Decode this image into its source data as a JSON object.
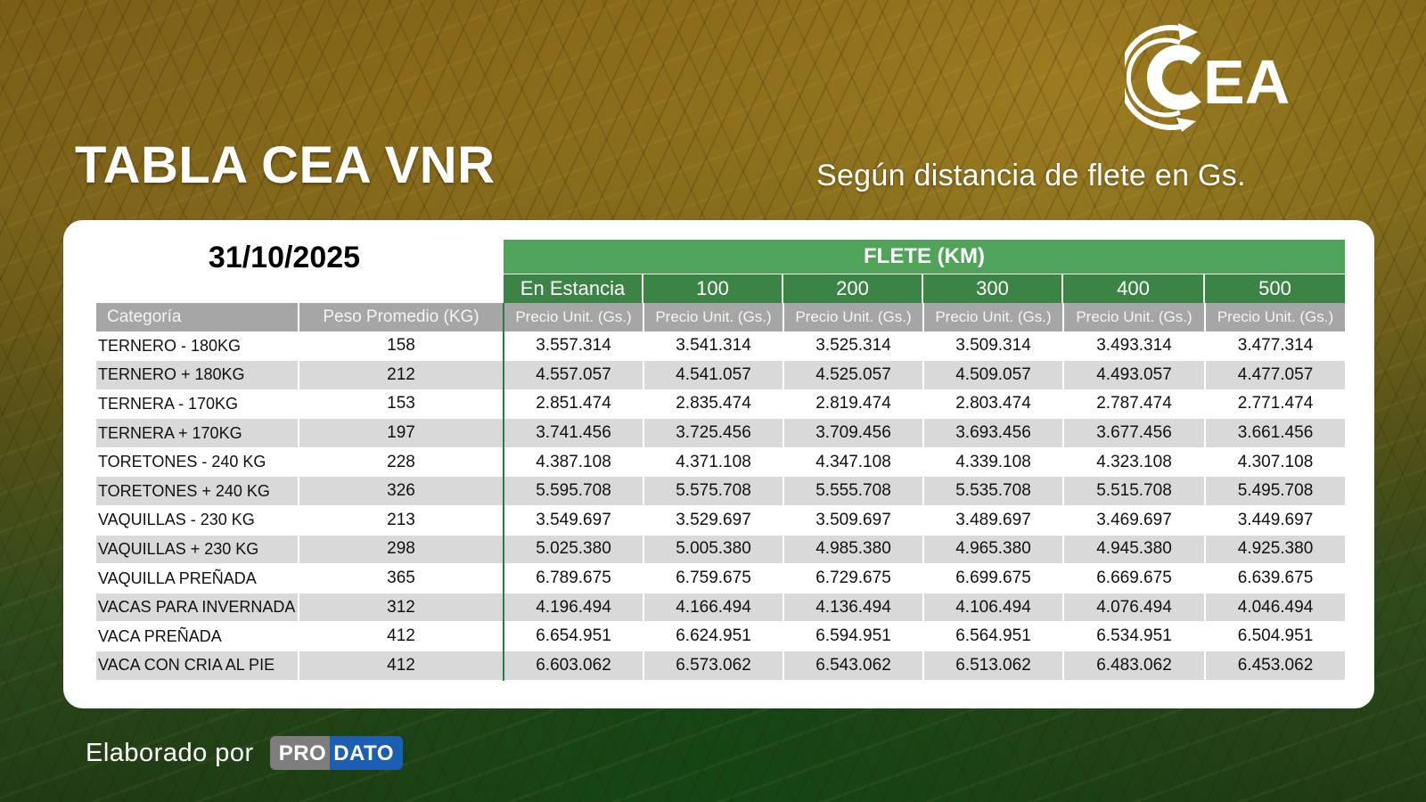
{
  "header": {
    "title": "TABLA CEA VNR",
    "subtitle": "Según distancia de flete en Gs.",
    "logo_text": "CEA"
  },
  "table": {
    "date": "31/10/2025",
    "group_header": "FLETE (KM)",
    "distances": [
      "En Estancia",
      "100",
      "200",
      "300",
      "400",
      "500"
    ],
    "column_headers": {
      "category": "Categoría",
      "weight": "Peso Promedio (KG)",
      "price": "Precio Unit. (Gs.)"
    },
    "rows": [
      {
        "category": "TERNERO - 180KG",
        "weight": "158",
        "prices": [
          "3.557.314",
          "3.541.314",
          "3.525.314",
          "3.509.314",
          "3.493.314",
          "3.477.314"
        ]
      },
      {
        "category": "TERNERO + 180KG",
        "weight": "212",
        "prices": [
          "4.557.057",
          "4.541.057",
          "4.525.057",
          "4.509.057",
          "4.493.057",
          "4.477.057"
        ]
      },
      {
        "category": "TERNERA - 170KG",
        "weight": "153",
        "prices": [
          "2.851.474",
          "2.835.474",
          "2.819.474",
          "2.803.474",
          "2.787.474",
          "2.771.474"
        ]
      },
      {
        "category": "TERNERA + 170KG",
        "weight": "197",
        "prices": [
          "3.741.456",
          "3.725.456",
          "3.709.456",
          "3.693.456",
          "3.677.456",
          "3.661.456"
        ]
      },
      {
        "category": "TORETONES - 240 KG",
        "weight": "228",
        "prices": [
          "4.387.108",
          "4.371.108",
          "4.347.108",
          "4.339.108",
          "4.323.108",
          "4.307.108"
        ]
      },
      {
        "category": "TORETONES + 240 KG",
        "weight": "326",
        "prices": [
          "5.595.708",
          "5.575.708",
          "5.555.708",
          "5.535.708",
          "5.515.708",
          "5.495.708"
        ]
      },
      {
        "category": "VAQUILLAS - 230 KG",
        "weight": "213",
        "prices": [
          "3.549.697",
          "3.529.697",
          "3.509.697",
          "3.489.697",
          "3.469.697",
          "3.449.697"
        ]
      },
      {
        "category": "VAQUILLAS + 230 KG",
        "weight": "298",
        "prices": [
          "5.025.380",
          "5.005.380",
          "4.985.380",
          "4.965.380",
          "4.945.380",
          "4.925.380"
        ]
      },
      {
        "category": "VAQUILLA PREÑADA",
        "weight": "365",
        "prices": [
          "6.789.675",
          "6.759.675",
          "6.729.675",
          "6.699.675",
          "6.669.675",
          "6.639.675"
        ]
      },
      {
        "category": "VACAS PARA INVERNADA",
        "weight": "312",
        "prices": [
          "4.196.494",
          "4.166.494",
          "4.136.494",
          "4.106.494",
          "4.076.494",
          "4.046.494"
        ]
      },
      {
        "category": "VACA PREÑADA",
        "weight": "412",
        "prices": [
          "6.654.951",
          "6.624.951",
          "6.594.951",
          "6.564.951",
          "6.534.951",
          "6.504.951"
        ]
      },
      {
        "category": "VACA CON CRIA AL PIE",
        "weight": "412",
        "prices": [
          "6.603.062",
          "6.573.062",
          "6.543.062",
          "6.513.062",
          "6.483.062",
          "6.453.062"
        ]
      }
    ]
  },
  "footer": {
    "label": "Elaborado por",
    "brand_part1": "PRO",
    "brand_part2": "DATO"
  },
  "colors": {
    "flete_header": "#4fa45a",
    "distance_header": "#3b8445",
    "column_header": "#a6a6a6",
    "row_alt": "#d9d9d9",
    "brand_blue": "#1b5fb5"
  }
}
